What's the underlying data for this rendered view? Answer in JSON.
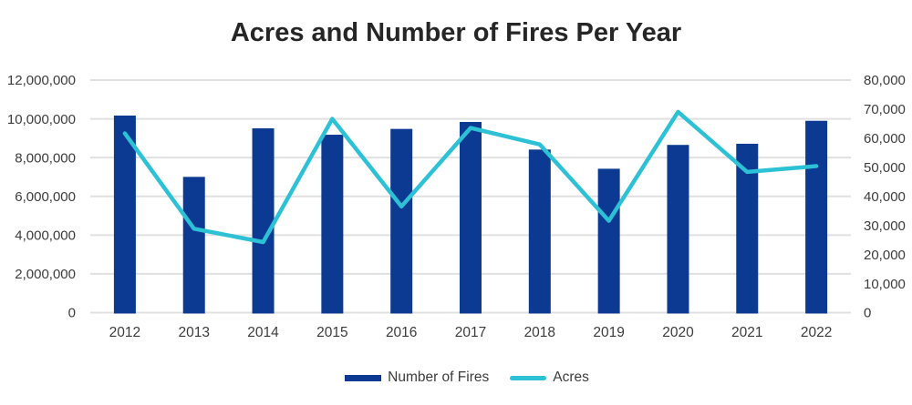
{
  "title": "Acres and Number of Fires Per Year",
  "colors": {
    "bar": "#0c3a92",
    "line": "#2cc1d5",
    "grid": "#e0e0e0",
    "axis_text": "#3c3c3c",
    "title_text": "#262626",
    "background": "#ffffff"
  },
  "legend": {
    "items": [
      {
        "label": "Number of Fires",
        "swatch": "bar-swatch"
      },
      {
        "label": "Acres",
        "swatch": "line-swatch"
      }
    ]
  },
  "chart_data": {
    "type": "bar",
    "subtype": "combo-bar-line",
    "title": "Acres and Number of Fires Per Year",
    "categories": [
      "2012",
      "2013",
      "2014",
      "2015",
      "2016",
      "2017",
      "2018",
      "2019",
      "2020",
      "2021",
      "2022"
    ],
    "series": [
      {
        "name": "Number of Fires",
        "type": "bar",
        "axis": "right",
        "color": "#0c3a92",
        "values": [
          67800,
          46700,
          63400,
          61200,
          63200,
          65600,
          56100,
          49500,
          57700,
          58100,
          66000
        ]
      },
      {
        "name": "Acres",
        "type": "line",
        "axis": "left",
        "color": "#2cc1d5",
        "values": [
          9250000,
          4330000,
          3640000,
          10000000,
          5480000,
          9530000,
          8680000,
          4740000,
          10360000,
          7260000,
          7560000
        ]
      }
    ],
    "left_axis": {
      "min": 0,
      "max": 12000000,
      "ticks": [
        0,
        2000000,
        4000000,
        6000000,
        8000000,
        10000000,
        12000000
      ],
      "tick_labels": [
        "0",
        "2,000,000",
        "4,000,000",
        "6,000,000",
        "8,000,000",
        "10,000,000",
        "12,000,000"
      ]
    },
    "right_axis": {
      "min": 0,
      "max": 80000,
      "ticks": [
        0,
        10000,
        20000,
        30000,
        40000,
        50000,
        60000,
        70000,
        80000
      ],
      "tick_labels": [
        "0",
        "10,000",
        "20,000",
        "30,000",
        "40,000",
        "50,000",
        "60,000",
        "70,000",
        "80,000"
      ]
    },
    "grid": "horizontal",
    "legend_position": "bottom"
  }
}
